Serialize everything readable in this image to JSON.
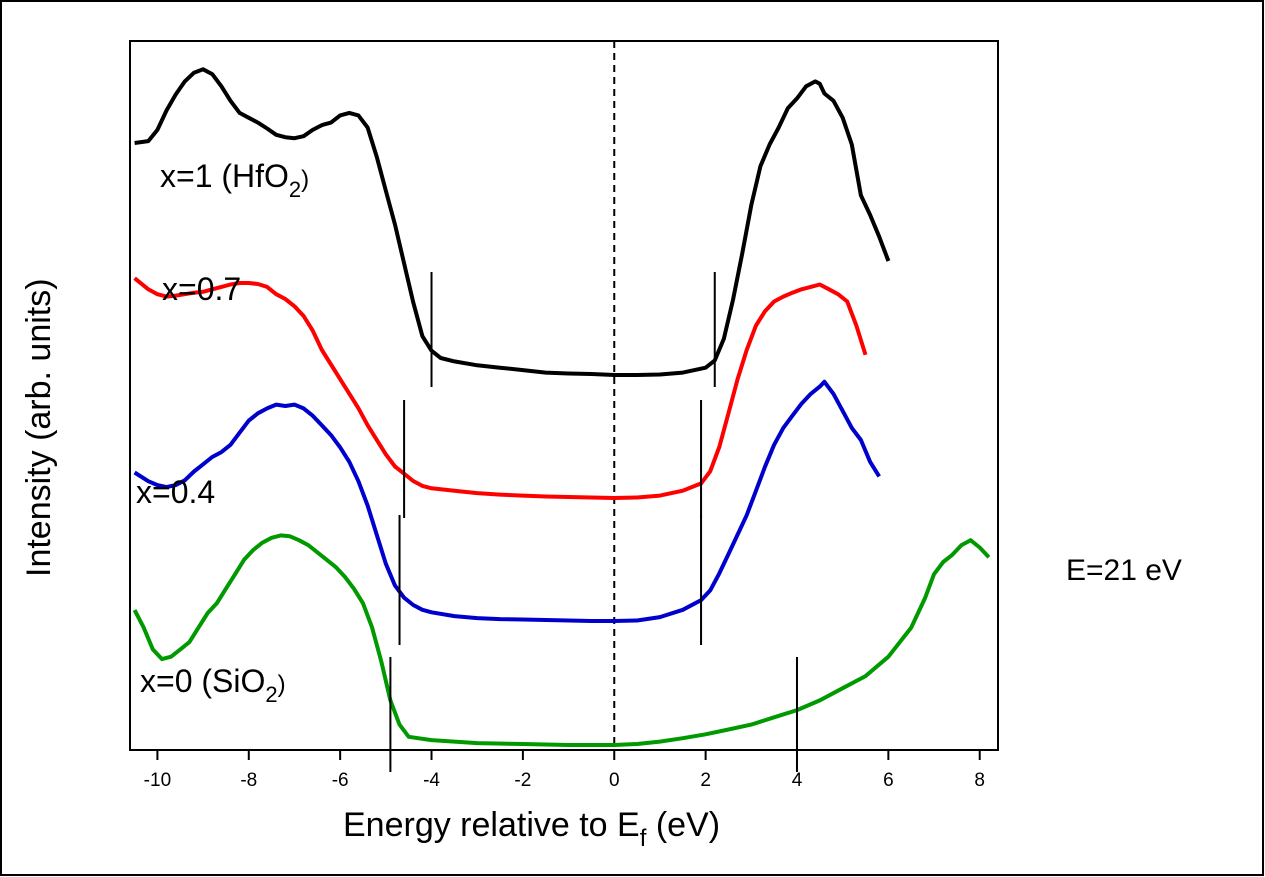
{
  "chart_data": {
    "type": "line",
    "title": "",
    "xlabel": "Energy relative to E",
    "xlabel_sub": "f",
    "xlabel_unit": " (eV)",
    "ylabel": "Intensity (arb. units)",
    "xlim": [
      -10.6,
      8.4
    ],
    "ylim": [
      0,
      1
    ],
    "x_ticks": [
      -10,
      -8,
      -6,
      -4,
      -2,
      0,
      2,
      4,
      6,
      8
    ],
    "y_ticks_shown": false,
    "grid": false,
    "legend": "none",
    "annotation": "E=21 eV",
    "zero_line": 0,
    "series": [
      {
        "name": "x=1 (HfO2)",
        "color": "#000000",
        "label_text": "x=1 (HfO",
        "label_sub": "2",
        "label_close": ")",
        "x": [
          -10.5,
          -10.2,
          -10.0,
          -9.8,
          -9.6,
          -9.4,
          -9.2,
          -9.0,
          -8.8,
          -8.6,
          -8.4,
          -8.2,
          -8.0,
          -7.8,
          -7.6,
          -7.4,
          -7.2,
          -7.0,
          -6.8,
          -6.6,
          -6.4,
          -6.2,
          -6.0,
          -5.8,
          -5.6,
          -5.4,
          -5.2,
          -5.0,
          -4.8,
          -4.6,
          -4.4,
          -4.2,
          -4.0,
          -3.8,
          -3.5,
          -3.0,
          -2.5,
          -2.0,
          -1.5,
          -1.0,
          -0.5,
          0.0,
          0.5,
          1.0,
          1.5,
          2.0,
          2.2,
          2.4,
          2.6,
          2.8,
          3.0,
          3.2,
          3.4,
          3.6,
          3.8,
          4.0,
          4.2,
          4.4,
          4.5,
          4.6,
          4.8,
          5.0,
          5.2,
          5.4,
          5.6,
          5.8,
          6.0
        ],
        "y": [
          0.848,
          0.852,
          0.875,
          0.915,
          0.948,
          0.975,
          0.993,
          1.0,
          0.99,
          0.965,
          0.935,
          0.91,
          0.9,
          0.89,
          0.878,
          0.865,
          0.86,
          0.858,
          0.862,
          0.875,
          0.885,
          0.89,
          0.905,
          0.91,
          0.905,
          0.88,
          0.82,
          0.75,
          0.68,
          0.6,
          0.52,
          0.45,
          0.42,
          0.405,
          0.398,
          0.39,
          0.385,
          0.38,
          0.375,
          0.373,
          0.372,
          0.37,
          0.37,
          0.371,
          0.375,
          0.385,
          0.4,
          0.445,
          0.525,
          0.62,
          0.72,
          0.8,
          0.845,
          0.88,
          0.92,
          0.94,
          0.965,
          0.975,
          0.97,
          0.95,
          0.935,
          0.9,
          0.845,
          0.74,
          0.7,
          0.655,
          0.605
        ]
      },
      {
        "name": "x=0.7",
        "color": "#ff0000",
        "label_text": "x=0.7",
        "label_sub": "",
        "label_close": "",
        "x": [
          -10.5,
          -10.2,
          -10.0,
          -9.8,
          -9.6,
          -9.4,
          -9.2,
          -9.0,
          -8.8,
          -8.6,
          -8.4,
          -8.2,
          -8.0,
          -7.8,
          -7.6,
          -7.4,
          -7.2,
          -7.0,
          -6.8,
          -6.6,
          -6.4,
          -6.2,
          -6.0,
          -5.8,
          -5.6,
          -5.4,
          -5.2,
          -5.0,
          -4.8,
          -4.6,
          -4.4,
          -4.2,
          -4.0,
          -3.5,
          -3.0,
          -2.5,
          -2.0,
          -1.5,
          -1.0,
          -0.5,
          0.0,
          0.5,
          1.0,
          1.5,
          1.9,
          2.1,
          2.3,
          2.5,
          2.7,
          2.9,
          3.1,
          3.3,
          3.5,
          3.7,
          3.9,
          4.1,
          4.3,
          4.5,
          4.7,
          4.9,
          5.1,
          5.3,
          5.5
        ],
        "y": [
          0.778,
          0.755,
          0.745,
          0.74,
          0.742,
          0.745,
          0.748,
          0.75,
          0.755,
          0.76,
          0.765,
          0.768,
          0.768,
          0.766,
          0.76,
          0.745,
          0.735,
          0.72,
          0.7,
          0.67,
          0.63,
          0.6,
          0.57,
          0.54,
          0.51,
          0.475,
          0.445,
          0.415,
          0.39,
          0.375,
          0.36,
          0.35,
          0.345,
          0.34,
          0.335,
          0.332,
          0.33,
          0.328,
          0.327,
          0.326,
          0.325,
          0.326,
          0.33,
          0.34,
          0.355,
          0.38,
          0.43,
          0.5,
          0.57,
          0.63,
          0.68,
          0.71,
          0.73,
          0.74,
          0.748,
          0.755,
          0.76,
          0.765,
          0.755,
          0.745,
          0.73,
          0.68,
          0.62
        ]
      },
      {
        "name": "x=0.4",
        "color": "#0000cc",
        "label_text": "x=0.4",
        "label_sub": "",
        "label_close": "",
        "x": [
          -10.5,
          -10.2,
          -10.0,
          -9.8,
          -9.6,
          -9.4,
          -9.2,
          -9.0,
          -8.8,
          -8.6,
          -8.4,
          -8.2,
          -8.0,
          -7.8,
          -7.6,
          -7.4,
          -7.2,
          -7.0,
          -6.8,
          -6.6,
          -6.4,
          -6.2,
          -6.0,
          -5.8,
          -5.6,
          -5.4,
          -5.2,
          -5.0,
          -4.8,
          -4.6,
          -4.4,
          -4.2,
          -4.0,
          -3.5,
          -3.0,
          -2.5,
          -2.0,
          -1.5,
          -1.0,
          -0.5,
          0.0,
          0.5,
          1.0,
          1.5,
          1.9,
          2.1,
          2.3,
          2.5,
          2.7,
          2.9,
          3.1,
          3.3,
          3.5,
          3.7,
          3.9,
          4.1,
          4.3,
          4.5,
          4.6,
          4.8,
          5.0,
          5.2,
          5.4,
          5.6,
          5.8
        ],
        "y": [
          0.478,
          0.46,
          0.452,
          0.448,
          0.452,
          0.462,
          0.48,
          0.495,
          0.51,
          0.52,
          0.535,
          0.56,
          0.585,
          0.6,
          0.61,
          0.618,
          0.615,
          0.618,
          0.61,
          0.595,
          0.575,
          0.555,
          0.53,
          0.5,
          0.46,
          0.41,
          0.35,
          0.29,
          0.245,
          0.22,
          0.205,
          0.195,
          0.19,
          0.182,
          0.178,
          0.176,
          0.175,
          0.174,
          0.173,
          0.172,
          0.172,
          0.173,
          0.18,
          0.195,
          0.215,
          0.235,
          0.27,
          0.31,
          0.35,
          0.39,
          0.44,
          0.49,
          0.535,
          0.57,
          0.595,
          0.62,
          0.64,
          0.655,
          0.665,
          0.64,
          0.605,
          0.57,
          0.545,
          0.5,
          0.47
        ]
      },
      {
        "name": "x=0 (SiO2)",
        "color": "#009900",
        "label_text": "x=0 (SiO",
        "label_sub": "2",
        "label_close": ")",
        "x": [
          -10.5,
          -10.3,
          -10.1,
          -9.9,
          -9.7,
          -9.5,
          -9.3,
          -9.1,
          -8.9,
          -8.7,
          -8.5,
          -8.3,
          -8.1,
          -7.9,
          -7.7,
          -7.5,
          -7.3,
          -7.1,
          -6.9,
          -6.7,
          -6.5,
          -6.3,
          -6.1,
          -5.9,
          -5.7,
          -5.5,
          -5.3,
          -5.1,
          -4.9,
          -4.7,
          -4.5,
          -4.0,
          -3.5,
          -3.0,
          -2.0,
          -1.0,
          0.0,
          0.5,
          1.0,
          1.5,
          2.0,
          2.5,
          3.0,
          3.5,
          4.0,
          4.5,
          5.0,
          5.5,
          6.0,
          6.5,
          6.8,
          7.0,
          7.2,
          7.4,
          7.6,
          7.8,
          8.0,
          8.2
        ],
        "y": [
          0.286,
          0.25,
          0.205,
          0.185,
          0.19,
          0.205,
          0.22,
          0.25,
          0.28,
          0.3,
          0.33,
          0.36,
          0.39,
          0.41,
          0.425,
          0.435,
          0.44,
          0.438,
          0.43,
          0.42,
          0.405,
          0.39,
          0.375,
          0.355,
          0.33,
          0.3,
          0.25,
          0.18,
          0.1,
          0.05,
          0.025,
          0.018,
          0.015,
          0.012,
          0.01,
          0.008,
          0.008,
          0.01,
          0.015,
          0.022,
          0.03,
          0.04,
          0.05,
          0.065,
          0.08,
          0.1,
          0.125,
          0.15,
          0.19,
          0.25,
          0.31,
          0.36,
          0.385,
          0.4,
          0.42,
          0.43,
          0.415,
          0.395
        ]
      }
    ],
    "gap_markers": [
      {
        "series": "x=1 (HfO2)",
        "positions": [
          -4.0,
          2.2
        ]
      },
      {
        "series": "x=0.7",
        "positions": [
          -4.6,
          1.9
        ]
      },
      {
        "series": "x=0.4",
        "positions": [
          -4.7,
          1.9
        ]
      },
      {
        "series": "x=0 (SiO2)",
        "positions": [
          -4.9,
          4.0
        ]
      }
    ]
  }
}
